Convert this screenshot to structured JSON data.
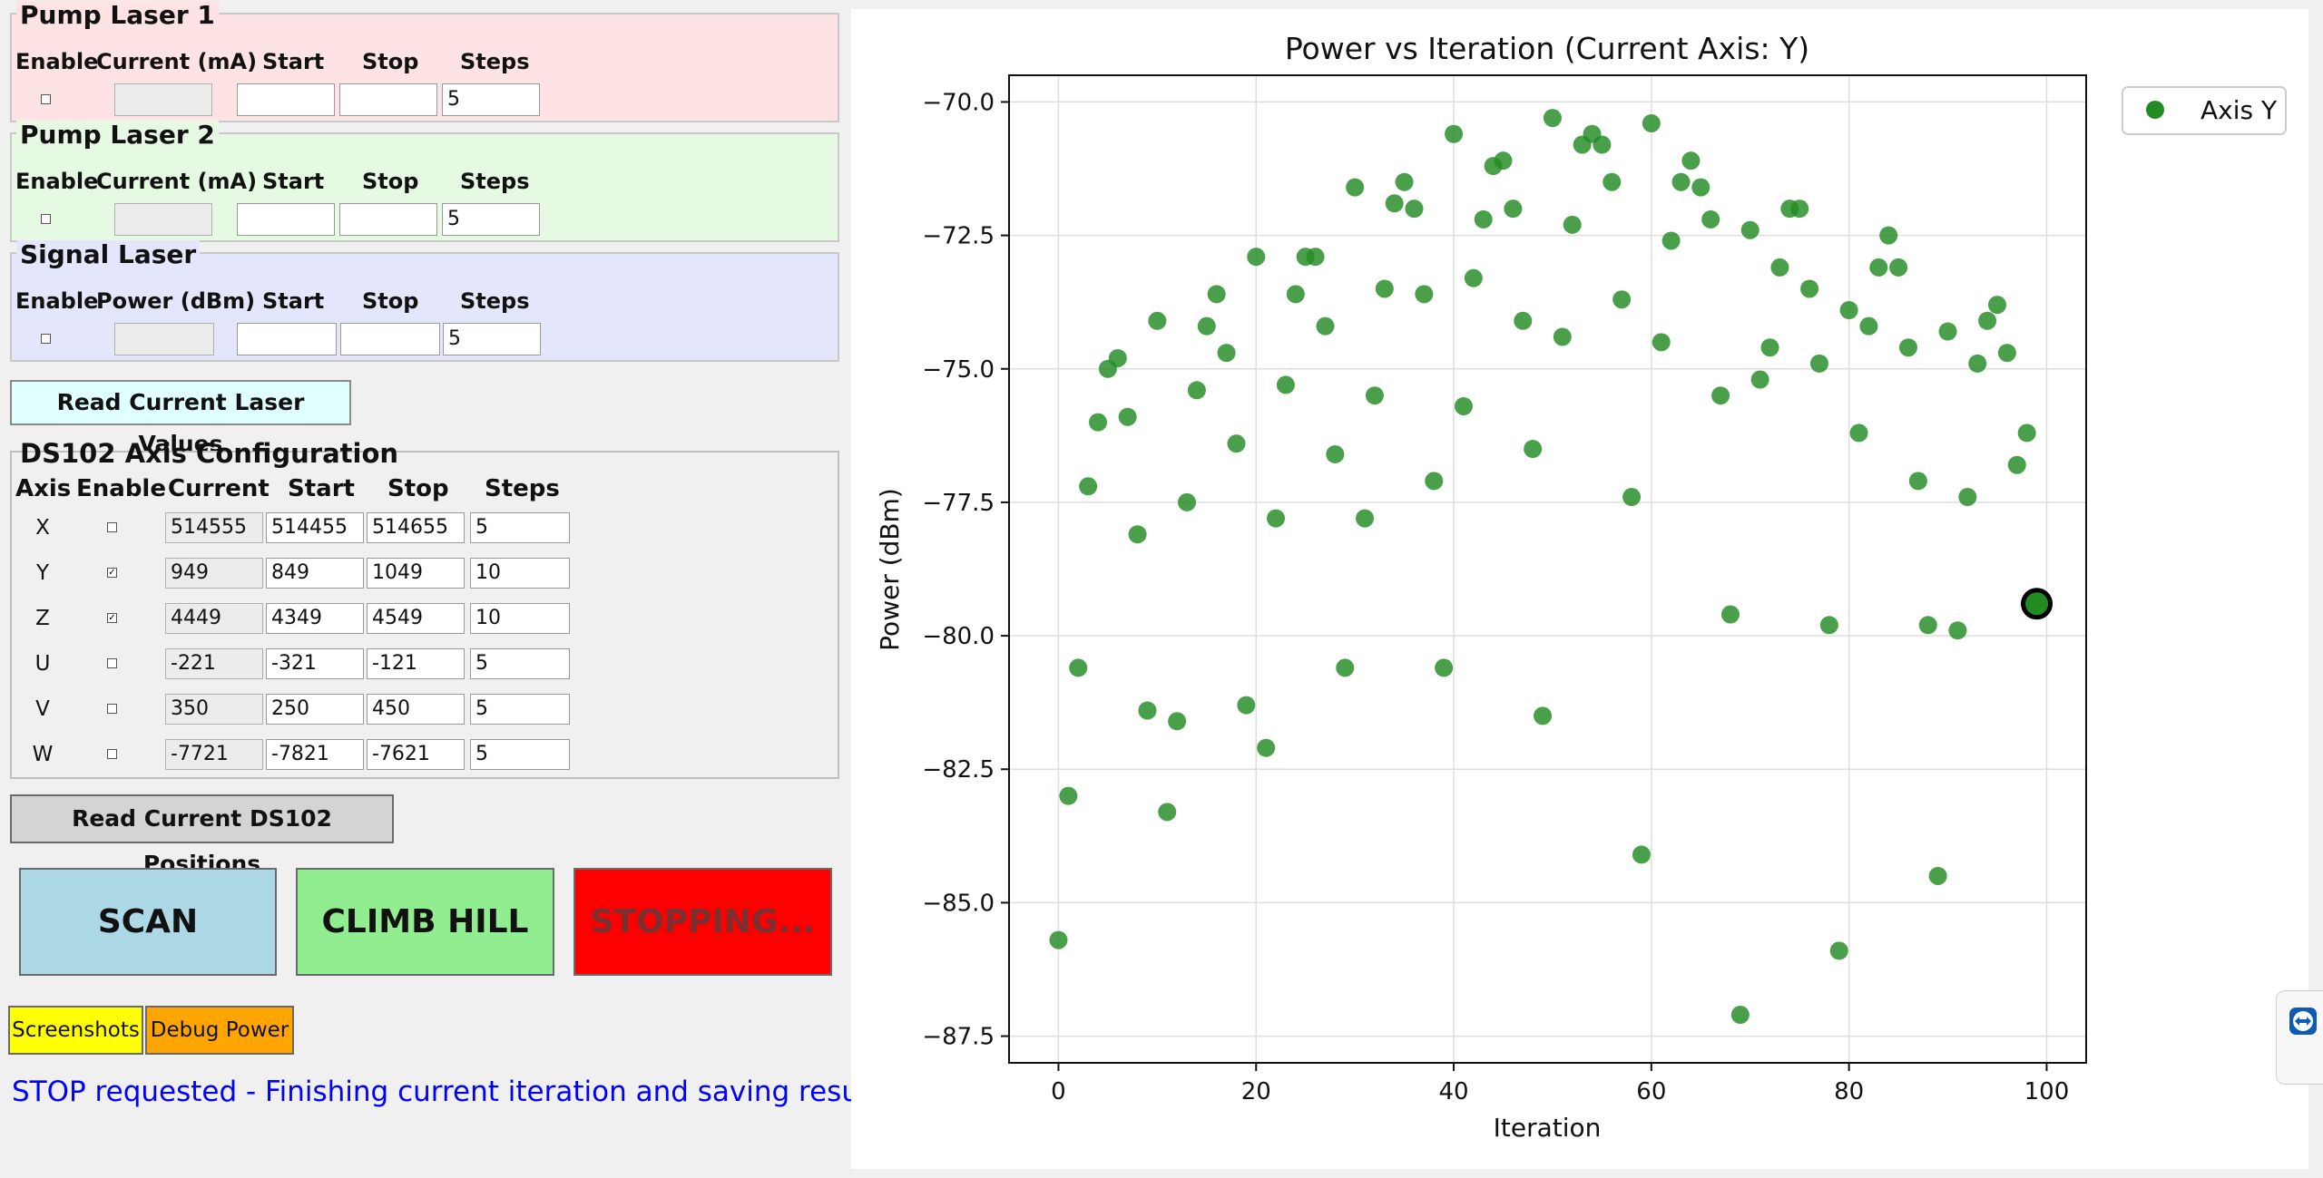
{
  "pump_laser_1": {
    "title": "Pump Laser 1",
    "headers": [
      "Enable",
      "Current (mA)",
      "Start",
      "Stop",
      "Steps"
    ],
    "enabled": false,
    "current": "",
    "start": "",
    "stop": "",
    "steps": "5",
    "bg_color": "#fde3e3"
  },
  "pump_laser_2": {
    "title": "Pump Laser 2",
    "headers": [
      "Enable",
      "Current (mA)",
      "Start",
      "Stop",
      "Steps"
    ],
    "enabled": false,
    "current": "",
    "start": "",
    "stop": "",
    "steps": "5",
    "bg_color": "#e5f9e3"
  },
  "signal_laser": {
    "title": "Signal Laser",
    "headers": [
      "Enable",
      "Power (dBm)",
      "Start",
      "Stop",
      "Steps"
    ],
    "enabled": false,
    "power": "",
    "start": "",
    "stop": "",
    "steps": "5",
    "bg_color": "#e4e6fb"
  },
  "read_laser_button": "Read Current Laser Values",
  "ds102": {
    "title": "DS102 Axis Configuration",
    "headers": [
      "Axis",
      "Enable",
      "Current",
      "Start",
      "Stop",
      "Steps"
    ],
    "rows": [
      {
        "axis": "X",
        "enabled": false,
        "current": "514555",
        "start": "514455",
        "stop": "514655",
        "steps": "5"
      },
      {
        "axis": "Y",
        "enabled": true,
        "current": "949",
        "start": "849",
        "stop": "1049",
        "steps": "10"
      },
      {
        "axis": "Z",
        "enabled": true,
        "current": "4449",
        "start": "4349",
        "stop": "4549",
        "steps": "10"
      },
      {
        "axis": "U",
        "enabled": false,
        "current": "-221",
        "start": "-321",
        "stop": "-121",
        "steps": "5"
      },
      {
        "axis": "V",
        "enabled": false,
        "current": "350",
        "start": "250",
        "stop": "450",
        "steps": "5"
      },
      {
        "axis": "W",
        "enabled": false,
        "current": "-7721",
        "start": "-7821",
        "stop": "-7621",
        "steps": "5"
      }
    ]
  },
  "read_ds102_button": "Read Current DS102 Positions",
  "actions": {
    "scan": "SCAN",
    "climb": "CLIMB HILL",
    "stop": "STOPPING...",
    "scan_color": "#add8e6",
    "climb_color": "#90ee90",
    "stop_color": "#ff0000"
  },
  "tools": {
    "screenshots": "Screenshots",
    "debug": "Debug Power",
    "screenshots_color": "#ffff00",
    "debug_color": "#ffa500"
  },
  "status_text": "STOP requested - Finishing current iteration and saving results...",
  "status_color": "#0000ff",
  "side_tab_icon": "teamviewer-icon",
  "chart_data": {
    "type": "scatter",
    "title": "Power vs Iteration (Current Axis: Y)",
    "xlabel": "Iteration",
    "ylabel": "Power (dBm)",
    "xlim": [
      -5,
      104
    ],
    "ylim": [
      -88,
      -69.5
    ],
    "xticks": [
      0,
      20,
      40,
      60,
      80,
      100
    ],
    "yticks": [
      -70.0,
      -72.5,
      -75.0,
      -77.5,
      -80.0,
      -82.5,
      -85.0,
      -87.5
    ],
    "grid": true,
    "legend_position": "top-right",
    "series": [
      {
        "name": "Axis Y",
        "color": "#228b22",
        "x": [
          0,
          1,
          2,
          3,
          4,
          5,
          6,
          7,
          8,
          9,
          10,
          11,
          12,
          13,
          14,
          15,
          16,
          17,
          18,
          19,
          20,
          21,
          22,
          23,
          24,
          25,
          26,
          27,
          28,
          29,
          30,
          31,
          32,
          33,
          34,
          35,
          36,
          37,
          38,
          39,
          40,
          41,
          42,
          43,
          44,
          45,
          46,
          47,
          48,
          49,
          50,
          51,
          52,
          53,
          54,
          55,
          56,
          57,
          58,
          59,
          60,
          61,
          62,
          63,
          64,
          65,
          66,
          67,
          68,
          69,
          70,
          71,
          72,
          73,
          74,
          75,
          76,
          77,
          78,
          79,
          80,
          81,
          82,
          83,
          84,
          85,
          86,
          87,
          88,
          89,
          90,
          91,
          92,
          93,
          94,
          95,
          96,
          97,
          98
        ],
        "y": [
          -85.7,
          -83.0,
          -80.6,
          -77.2,
          -76.0,
          -75.0,
          -74.8,
          -75.9,
          -78.1,
          -81.4,
          -74.1,
          -83.3,
          -81.6,
          -77.5,
          -75.4,
          -74.2,
          -73.6,
          -74.7,
          -76.4,
          -81.3,
          -72.9,
          -82.1,
          -77.8,
          -75.3,
          -73.6,
          -72.9,
          -72.9,
          -74.2,
          -76.6,
          -80.6,
          -71.6,
          -77.8,
          -75.5,
          -73.5,
          -71.9,
          -71.5,
          -72.0,
          -73.6,
          -77.1,
          -80.6,
          -70.6,
          -75.7,
          -73.3,
          -72.2,
          -71.2,
          -71.1,
          -72.0,
          -74.1,
          -76.5,
          -81.5,
          -70.3,
          -74.4,
          -72.3,
          -70.8,
          -70.6,
          -70.8,
          -71.5,
          -73.7,
          -77.4,
          -84.1,
          -70.4,
          -74.5,
          -72.6,
          -71.5,
          -71.1,
          -71.6,
          -72.2,
          -75.5,
          -79.6,
          -87.1,
          -72.4,
          -75.2,
          -74.6,
          -73.1,
          -72.0,
          -72.0,
          -73.5,
          -74.9,
          -79.8,
          -85.9,
          -73.9,
          -76.2,
          -74.2,
          -73.1,
          -72.5,
          -73.1,
          -74.6,
          -77.1,
          -79.8,
          -84.5,
          -74.3,
          -79.9,
          -77.4,
          -74.9,
          -74.1,
          -73.8,
          -74.7,
          -76.8,
          -76.2
        ]
      }
    ],
    "current_point": {
      "x": 99,
      "y": -79.4,
      "color": "#228b22"
    }
  }
}
